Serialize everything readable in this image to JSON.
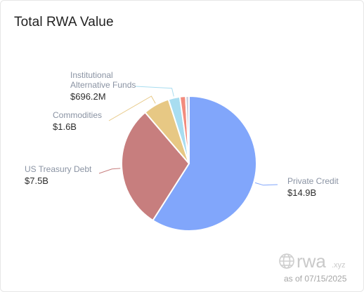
{
  "title": "Total RWA Value",
  "as_of": "as of 07/15/2025",
  "watermark": {
    "brand": "rwa",
    "suffix": ".xyz"
  },
  "chart_data": {
    "type": "pie",
    "title": "Total RWA Value",
    "unit": "USD",
    "slices": [
      {
        "name": "Private Credit",
        "value": 14.9,
        "label": "$14.9B",
        "color": "#81a6fb"
      },
      {
        "name": "US Treasury Debt",
        "value": 7.5,
        "label": "$7.5B",
        "color": "#c77e7e"
      },
      {
        "name": "Commodities",
        "value": 1.6,
        "label": "$1.6B",
        "color": "#e7c884"
      },
      {
        "name": "Institutional Alternative Funds",
        "name_lines": [
          "Institutional",
          "Alternative Funds"
        ],
        "value": 0.6962,
        "label": "$696.2M",
        "color": "#a8ddf0"
      },
      {
        "name": "",
        "value": 0.35,
        "label": "",
        "color": "#f28b7d"
      },
      {
        "name": "",
        "value": 0.2,
        "label": "",
        "color": "#cbd0e0"
      }
    ]
  }
}
